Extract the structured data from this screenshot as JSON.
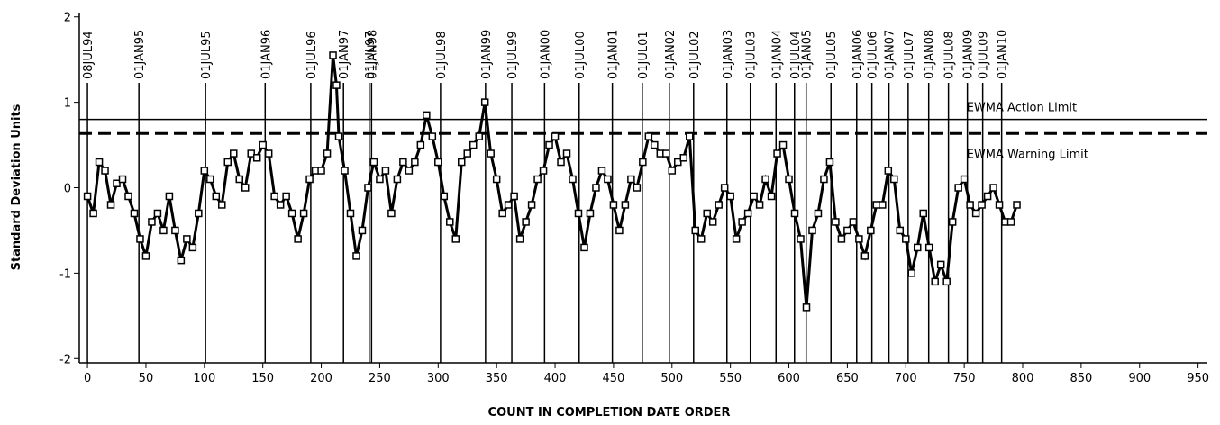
{
  "chart_data": {
    "type": "line",
    "xlabel": "COUNT IN COMPLETION DATE ORDER",
    "ylabel": "Standard Deviation Units",
    "xlim": [
      -7,
      958
    ],
    "ylim": [
      -2.05,
      2.05
    ],
    "xticks": [
      0,
      50,
      100,
      150,
      200,
      250,
      300,
      350,
      400,
      450,
      500,
      550,
      600,
      650,
      700,
      750,
      800,
      850,
      900,
      950
    ],
    "yticks": [
      -2,
      -1,
      0,
      1,
      2
    ],
    "color": "#000000",
    "marker": "square",
    "series": [
      {
        "x": [
          0,
          5,
          10,
          15,
          20,
          25,
          30,
          35,
          40,
          45,
          50,
          55,
          60,
          65,
          70,
          75,
          80,
          85,
          90,
          95,
          100,
          105,
          110,
          115,
          120,
          125,
          130,
          135,
          140,
          145,
          150,
          155,
          160,
          165,
          170,
          175,
          180,
          185,
          190,
          195,
          200,
          205,
          210,
          213,
          215,
          220,
          225,
          230,
          235,
          240,
          245,
          250,
          255,
          260,
          265,
          270,
          275,
          280,
          285,
          290,
          295,
          300,
          305,
          310,
          315,
          320,
          325,
          330,
          335,
          340,
          345,
          350,
          355,
          360,
          365,
          370,
          375,
          380,
          385,
          390,
          395,
          400,
          405,
          410,
          415,
          420,
          425,
          430,
          435,
          440,
          445,
          450,
          455,
          460,
          465,
          470,
          475,
          480,
          485,
          490,
          495,
          500,
          505,
          510,
          515,
          520,
          525,
          530,
          535,
          540,
          545,
          550,
          555,
          560,
          565,
          570,
          575,
          580,
          585,
          590,
          595,
          600,
          605,
          610,
          615,
          620,
          625,
          630,
          635,
          640,
          645,
          650,
          655,
          660,
          665,
          670,
          675,
          680,
          685,
          690,
          695,
          700,
          705,
          710,
          715,
          720,
          725,
          730,
          735,
          740,
          745,
          750,
          755,
          760,
          765,
          770,
          775,
          780,
          785,
          790,
          795
        ],
        "values": [
          -0.1,
          -0.3,
          0.3,
          0.2,
          -0.2,
          0.05,
          0.1,
          -0.1,
          -0.3,
          -0.6,
          -0.8,
          -0.4,
          -0.3,
          -0.5,
          -0.1,
          -0.5,
          -0.85,
          -0.6,
          -0.7,
          -0.3,
          0.2,
          0.1,
          -0.1,
          -0.2,
          0.3,
          0.4,
          0.1,
          0.0,
          0.4,
          0.35,
          0.5,
          0.4,
          -0.1,
          -0.2,
          -0.1,
          -0.3,
          -0.6,
          -0.3,
          0.1,
          0.2,
          0.2,
          0.4,
          1.55,
          1.2,
          0.6,
          0.2,
          -0.3,
          -0.8,
          -0.5,
          0.0,
          0.3,
          0.1,
          0.2,
          -0.3,
          0.1,
          0.3,
          0.2,
          0.3,
          0.5,
          0.85,
          0.6,
          0.3,
          -0.1,
          -0.4,
          -0.6,
          0.3,
          0.4,
          0.5,
          0.6,
          1.0,
          0.4,
          0.1,
          -0.3,
          -0.2,
          -0.1,
          -0.6,
          -0.4,
          -0.2,
          0.1,
          0.2,
          0.5,
          0.6,
          0.3,
          0.4,
          0.1,
          -0.3,
          -0.7,
          -0.3,
          0.0,
          0.2,
          0.1,
          -0.2,
          -0.5,
          -0.2,
          0.1,
          0.0,
          0.3,
          0.6,
          0.5,
          0.4,
          0.4,
          0.2,
          0.3,
          0.35,
          0.6,
          -0.5,
          -0.6,
          -0.3,
          -0.4,
          -0.2,
          0.0,
          -0.1,
          -0.6,
          -0.4,
          -0.3,
          -0.1,
          -0.2,
          0.1,
          -0.1,
          0.4,
          0.5,
          0.1,
          -0.3,
          -0.6,
          -1.4,
          -0.5,
          -0.3,
          0.1,
          0.3,
          -0.4,
          -0.6,
          -0.5,
          -0.4,
          -0.6,
          -0.8,
          -0.5,
          -0.2,
          -0.2,
          0.2,
          0.1,
          -0.5,
          -0.6,
          -1.0,
          -0.7,
          -0.3,
          -0.7,
          -1.1,
          -0.9,
          -1.1,
          -0.4,
          0.0,
          0.1,
          -0.2,
          -0.3,
          -0.2,
          -0.1,
          0.0,
          -0.2,
          -0.4,
          -0.4,
          -0.2
        ]
      }
    ],
    "vlines": [
      {
        "x": 0,
        "label": "08JUL94"
      },
      {
        "x": 44,
        "label": "01JAN95"
      },
      {
        "x": 101,
        "label": "01JUL95"
      },
      {
        "x": 152,
        "label": "01JAN96"
      },
      {
        "x": 191,
        "label": "01JUL96"
      },
      {
        "x": 219,
        "label": "01JAN97"
      },
      {
        "x": 241,
        "label": "01JUL97"
      },
      {
        "x": 243,
        "label": "01JAN98"
      },
      {
        "x": 302,
        "label": "01JUL98"
      },
      {
        "x": 340.5,
        "label": "01JAN99"
      },
      {
        "x": 363,
        "label": "01JUL99"
      },
      {
        "x": 391,
        "label": "01JAN00"
      },
      {
        "x": 420.6,
        "label": "01JUL00"
      },
      {
        "x": 449,
        "label": "01JAN01"
      },
      {
        "x": 474.6,
        "label": "01JUL01"
      },
      {
        "x": 497.7,
        "label": "01JAN02"
      },
      {
        "x": 518.5,
        "label": "01JUL02"
      },
      {
        "x": 547,
        "label": "01JAN03"
      },
      {
        "x": 567,
        "label": "01JUL03"
      },
      {
        "x": 589,
        "label": "01JAN04"
      },
      {
        "x": 604.8,
        "label": "01JUL04"
      },
      {
        "x": 614.8,
        "label": "01JAN05"
      },
      {
        "x": 636,
        "label": "01JUL05"
      },
      {
        "x": 658,
        "label": "01JAN06"
      },
      {
        "x": 671,
        "label": "01JUL06"
      },
      {
        "x": 685.6,
        "label": "01JAN07"
      },
      {
        "x": 702,
        "label": "01JUL07"
      },
      {
        "x": 719.6,
        "label": "01JAN08"
      },
      {
        "x": 736.5,
        "label": "01JUL08"
      },
      {
        "x": 752.7,
        "label": "01JAN09"
      },
      {
        "x": 765.8,
        "label": "01JUL09"
      },
      {
        "x": 782,
        "label": "01JAN10"
      }
    ],
    "hlines": [
      {
        "y": 0.8,
        "label": "EWMA Action Limit",
        "style": "solid"
      },
      {
        "y": 0.635,
        "label": "EWMA Warning Limit",
        "style": "dashed"
      }
    ]
  }
}
